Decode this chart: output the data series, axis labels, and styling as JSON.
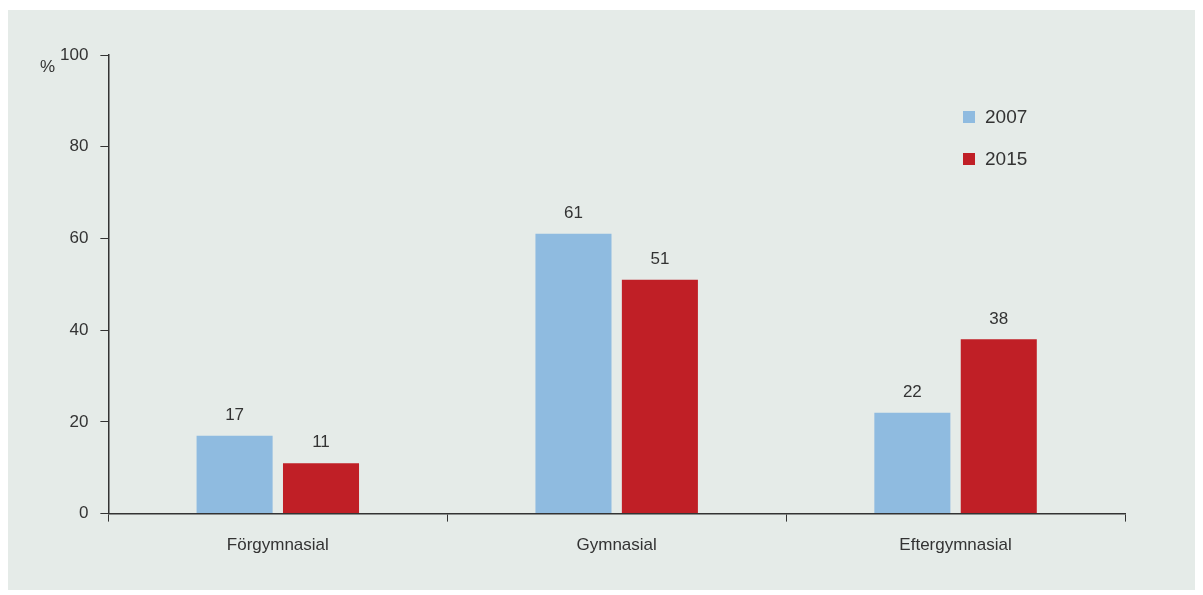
{
  "chart_data": {
    "type": "bar",
    "ylabel": "%",
    "categories": [
      "Förgymnasial",
      "Gymnasial",
      "Eftergymnasial"
    ],
    "series": [
      {
        "name": "2007",
        "color": "#8fbbe0",
        "values": [
          17,
          61,
          22
        ]
      },
      {
        "name": "2015",
        "color": "#c01f26",
        "values": [
          11,
          51,
          38
        ]
      }
    ],
    "ylim": [
      0,
      100
    ],
    "yticks": [
      0,
      20,
      40,
      60,
      80,
      100
    ],
    "grid": false,
    "legend": "top right",
    "data_labels": true
  }
}
